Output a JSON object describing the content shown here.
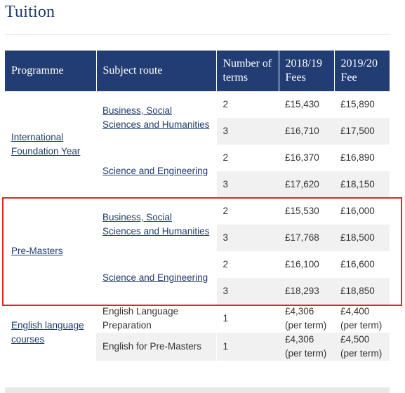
{
  "page": {
    "title": "Tuition"
  },
  "table": {
    "headers": {
      "programme": "Programme",
      "subject_route": "Subject route",
      "number_of_terms": "Number of terms",
      "fees_2018": "2018/19 Fees",
      "fee_2019": "2019/20 Fee"
    },
    "ifp": {
      "programme": "International Foundation Year",
      "route1": "Business, Social Sciences and Humanities",
      "route2": "Science and Engineering",
      "rows": [
        {
          "terms": "2",
          "fee2018": "£15,430",
          "fee2019": "£15,890"
        },
        {
          "terms": "3",
          "fee2018": "£16,710",
          "fee2019": "£17,500"
        },
        {
          "terms": "2",
          "fee2018": "£16,370",
          "fee2019": "£16,890"
        },
        {
          "terms": "3",
          "fee2018": "£17,620",
          "fee2019": "£18,150"
        }
      ]
    },
    "premasters": {
      "programme": "Pre-Masters",
      "route1": "Business, Social Sciences and Humanities",
      "route2": "Science and Engineering",
      "rows": [
        {
          "terms": "2",
          "fee2018": "£15,530",
          "fee2019": "£16,000"
        },
        {
          "terms": "3",
          "fee2018": "£17,768",
          "fee2019": "£18,500"
        },
        {
          "terms": "2",
          "fee2018": "£16,100",
          "fee2019": "£16,600"
        },
        {
          "terms": "3",
          "fee2018": "£18,293",
          "fee2019": "£18,850"
        }
      ]
    },
    "english": {
      "programme": "English language courses",
      "route1": "English Language Preparation",
      "route2": "English for Pre-Masters",
      "rows": [
        {
          "terms": "1",
          "fee2018": "£4,306 (per term)",
          "fee2019": "£4,400 (per term)"
        },
        {
          "terms": "1",
          "fee2018": "£4,306 (per term)",
          "fee2019": "£4,500 (per term)"
        }
      ]
    }
  },
  "highlight_color": "#e3261f"
}
